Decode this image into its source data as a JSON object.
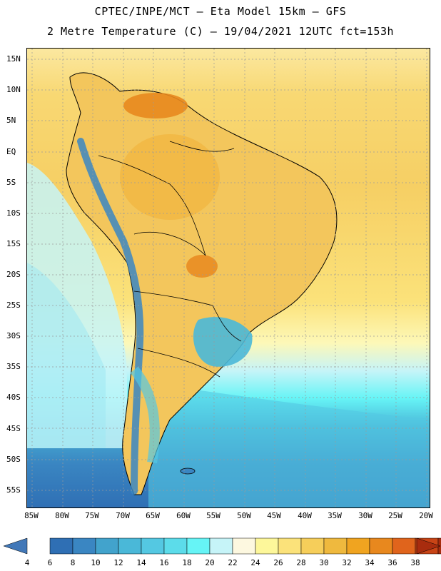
{
  "title": {
    "line1": "CPTEC/INPE/MCT –  Eta Model 15km – GFS",
    "line2": "2 Metre Temperature (C) – 19/04/2021 12UTC fct=153h"
  },
  "map": {
    "variable": "2 Metre Temperature",
    "unit": "C",
    "lat_labels": [
      "15N",
      "10N",
      "5N",
      "EQ",
      "5S",
      "10S",
      "15S",
      "20S",
      "25S",
      "30S",
      "35S",
      "40S",
      "45S",
      "50S",
      "55S"
    ],
    "lon_labels": [
      "85W",
      "80W",
      "75W",
      "70W",
      "65W",
      "60W",
      "55W",
      "50W",
      "45W",
      "40W",
      "35W",
      "30W",
      "25W",
      "20W"
    ]
  },
  "colorbar": {
    "labels": [
      "4",
      "6",
      "8",
      "10",
      "12",
      "14",
      "16",
      "18",
      "20",
      "22",
      "24",
      "26",
      "28",
      "30",
      "32",
      "34",
      "36",
      "38"
    ],
    "colors": [
      "#4278b8",
      "#2f6fb4",
      "#3a86c2",
      "#42a3cc",
      "#4ab8d8",
      "#54c8e2",
      "#5cdcea",
      "#66f4f6",
      "#c6f4f8",
      "#fdf8e0",
      "#fdf79a",
      "#fbe27a",
      "#f6ce5a",
      "#efb93e",
      "#f0a420",
      "#e8881e",
      "#e0641c",
      "#c84416",
      "#a82c0e"
    ],
    "left_arrow_color": "#4278b8",
    "right_arrow_color": "#a82c0e"
  }
}
